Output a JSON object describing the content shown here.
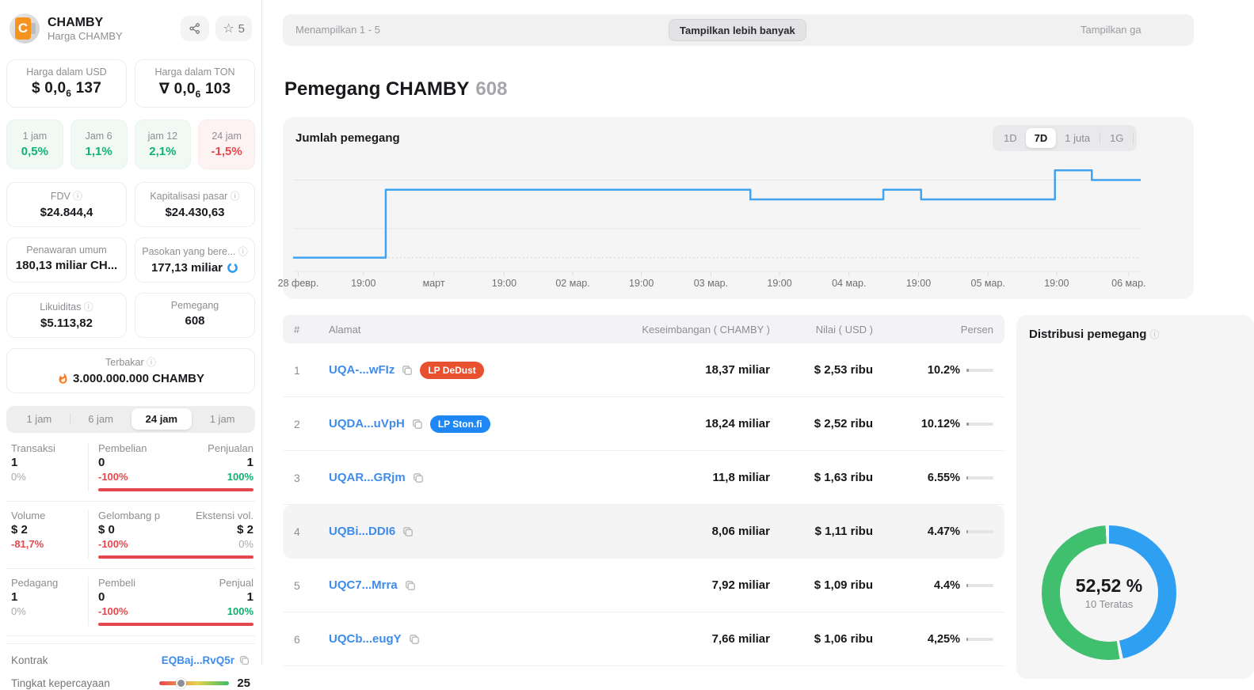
{
  "token": {
    "name": "CHAMBY",
    "subtitle": "Harga CHAMBY",
    "logo_letter": "C",
    "favorites": "5"
  },
  "price_cards": [
    {
      "label": "Harga dalam USD",
      "sym": "$",
      "main": "0,0",
      "sub": "6",
      "rest": "137"
    },
    {
      "label": "Harga dalam TON",
      "sym": "∇",
      "main": "0,0",
      "sub": "6",
      "rest": "103"
    }
  ],
  "change_chips": [
    {
      "label": "1 jam",
      "value": "0,5%",
      "dir": "up"
    },
    {
      "label": "Jam 6",
      "value": "1,1%",
      "dir": "up"
    },
    {
      "label": "jam 12",
      "value": "2,1%",
      "dir": "up"
    },
    {
      "label": "24 jam",
      "value": "-1,5%",
      "dir": "down"
    }
  ],
  "stat_cards": [
    {
      "label": "FDV",
      "info": true,
      "value": "$24.844,4"
    },
    {
      "label": "Kapitalisasi pasar",
      "info": true,
      "value": "$24.430,63"
    },
    {
      "label": "Penawaran umum",
      "info": false,
      "value": "180,13 miliar CH..."
    },
    {
      "label": "Pasokan yang bere...",
      "info": true,
      "value": "177,13 miliar",
      "icon": "ton-ring"
    },
    {
      "label": "Likuiditas",
      "info": true,
      "value": "$5.113,82"
    },
    {
      "label": "Pemegang",
      "info": false,
      "value": "608"
    }
  ],
  "burned_card": {
    "label": "Terbakar",
    "value": "3.000.000.000 CHAMBY"
  },
  "period_tabs": {
    "items": [
      "1 jam",
      "6 jam",
      "24 jam",
      "1 jam"
    ],
    "active_index": 2
  },
  "stats_rows": [
    {
      "left": {
        "label": "Transaksi",
        "value": "1",
        "pct": "0%",
        "tone": "gray"
      },
      "a": {
        "label": "Pembelian",
        "value": "0",
        "pct": "-100%",
        "tone": "red"
      },
      "b": {
        "label": "Penjualan",
        "value": "1",
        "pct": "100%",
        "tone": "green"
      }
    },
    {
      "left": {
        "label": "Volume",
        "value": "$ 2",
        "pct": "-81,7%",
        "tone": "red"
      },
      "a": {
        "label": "Gelombang p",
        "value": "$ 0",
        "pct": "-100%",
        "tone": "red"
      },
      "b": {
        "label": "Ekstensi vol.",
        "value": "$ 2",
        "pct": "0%",
        "tone": "gray"
      }
    },
    {
      "left": {
        "label": "Pedagang",
        "value": "1",
        "pct": "0%",
        "tone": "gray"
      },
      "a": {
        "label": "Pembeli",
        "value": "0",
        "pct": "-100%",
        "tone": "red"
      },
      "b": {
        "label": "Penjual",
        "value": "1",
        "pct": "100%",
        "tone": "green"
      }
    }
  ],
  "contract": {
    "label": "Kontrak",
    "address": "EQBaj...RvQ5r"
  },
  "trust": {
    "label": "Tingkat kepercayaan",
    "value": "25",
    "pos_pct": 30
  },
  "topbar": {
    "showing": "Menampilkan 1 - 5",
    "more_button": "Tampilkan lebih banyak",
    "right_text": "Tampilkan ga"
  },
  "holders_header": {
    "title": "Pemegang CHAMBY",
    "count": "608"
  },
  "chart_data": {
    "type": "line",
    "title": "Jumlah pemegang",
    "ranges": [
      "1D",
      "7D",
      "1 juta",
      "1G"
    ],
    "active_range_index": 1,
    "line_color": "#41a2ee",
    "ylim": [
      599.4,
      610
    ],
    "gridline_values": [
      608,
      603
    ],
    "baseline_value": 600,
    "steps": [
      {
        "x": 0.012,
        "v": 600
      },
      {
        "x": 0.12,
        "v": 607
      },
      {
        "x": 0.545,
        "v": 606
      },
      {
        "x": 0.7,
        "v": 607
      },
      {
        "x": 0.744,
        "v": 606
      },
      {
        "x": 0.9,
        "v": 609
      },
      {
        "x": 0.943,
        "v": 608
      },
      {
        "x": 1.0,
        "v": 608
      }
    ],
    "x_labels": [
      {
        "x": 0.018,
        "t": "28 февр."
      },
      {
        "x": 0.094,
        "t": "19:00"
      },
      {
        "x": 0.176,
        "t": "март"
      },
      {
        "x": 0.258,
        "t": "19:00"
      },
      {
        "x": 0.338,
        "t": "02 мар."
      },
      {
        "x": 0.418,
        "t": "19:00"
      },
      {
        "x": 0.499,
        "t": "03 мар."
      },
      {
        "x": 0.579,
        "t": "19:00"
      },
      {
        "x": 0.66,
        "t": "04 мар."
      },
      {
        "x": 0.741,
        "t": "19:00"
      },
      {
        "x": 0.822,
        "t": "05 мар."
      },
      {
        "x": 0.902,
        "t": "19:00"
      },
      {
        "x": 0.986,
        "t": "06 мар."
      }
    ]
  },
  "table": {
    "headers": [
      "#",
      "Alamat",
      "Keseimbangan ( CHAMBY )",
      "Nilai ( USD )",
      "Persen"
    ],
    "highlight_index": 3,
    "rows": [
      {
        "rank": "1",
        "address": "UQA-...wFIz",
        "badge": "LP DeDust",
        "badge_color": "#e8512f",
        "balance": "18,37 miliar",
        "value": "$ 2,53 ribu",
        "percent": "10.2%",
        "percent_num": 10.2
      },
      {
        "rank": "2",
        "address": "UQDA...uVpH",
        "badge": "LP Ston.fi",
        "badge_color": "#1f87f5",
        "balance": "18,24 miliar",
        "value": "$ 2,52 ribu",
        "percent": "10.12%",
        "percent_num": 10.12
      },
      {
        "rank": "3",
        "address": "UQAR...GRjm",
        "badge": null,
        "balance": "11,8 miliar",
        "value": "$ 1,63 ribu",
        "percent": "6.55%",
        "percent_num": 6.55
      },
      {
        "rank": "4",
        "address": "UQBi...DDI6",
        "badge": null,
        "balance": "8,06 miliar",
        "value": "$ 1,11 ribu",
        "percent": "4.47%",
        "percent_num": 4.47
      },
      {
        "rank": "5",
        "address": "UQC7...Mrra",
        "badge": null,
        "balance": "7,92 miliar",
        "value": "$ 1,09 ribu",
        "percent": "4.4%",
        "percent_num": 4.4
      },
      {
        "rank": "6",
        "address": "UQCb...eugY",
        "badge": null,
        "balance": "7,66 miliar",
        "value": "$ 1,06 ribu",
        "percent": "4,25%",
        "percent_num": 4.25
      }
    ]
  },
  "distribution": {
    "title": "Distribusi pemegang",
    "center_value": "52,52 %",
    "center_label": "10 Teratas",
    "segments": [
      {
        "value": 47.48,
        "color": "#2f9ff2"
      },
      {
        "value": 52.52,
        "color": "#40bf6e"
      }
    ]
  },
  "colors": {
    "accent_blue": "#3f8ceb",
    "green": "#0fae6e",
    "red": "#e5474c",
    "chart_line": "#41a2ee"
  }
}
